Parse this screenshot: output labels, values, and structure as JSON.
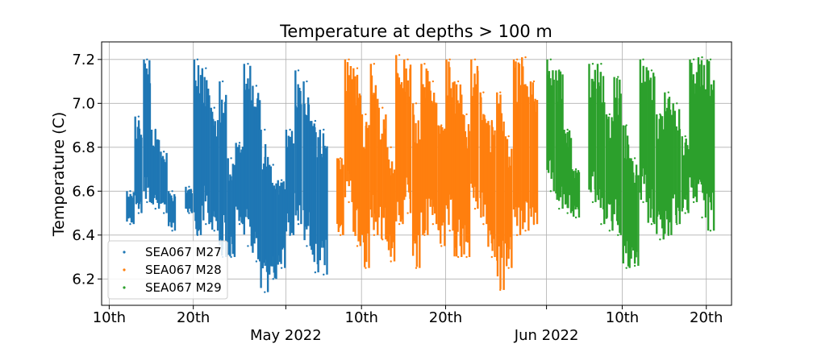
{
  "chart_data": {
    "type": "scatter",
    "title": "Temperature at depths > 100 m",
    "xlabel": "",
    "ylabel": "Temperature (C)",
    "x_range": [
      "2022-04-09",
      "2022-06-23"
    ],
    "ylim": [
      6.08,
      7.28
    ],
    "y_ticks": [
      "6.2",
      "6.4",
      "6.6",
      "6.8",
      "7.0",
      "7.2"
    ],
    "y_tick_values": [
      6.2,
      6.4,
      6.6,
      6.8,
      7.0,
      7.2
    ],
    "x_ticks": [
      {
        "date": "2022-04-10",
        "label": "10th"
      },
      {
        "date": "2022-04-20",
        "label": "20th"
      },
      {
        "date": "2022-05-01",
        "label": "",
        "major_label": "May 2022"
      },
      {
        "date": "2022-05-10",
        "label": "10th"
      },
      {
        "date": "2022-05-20",
        "label": "20th"
      },
      {
        "date": "2022-06-01",
        "label": "",
        "major_label": "Jun 2022"
      },
      {
        "date": "2022-06-10",
        "label": "10th"
      },
      {
        "date": "2022-06-20",
        "label": "20th"
      }
    ],
    "grid": true,
    "legend_position": "lower-left",
    "series": [
      {
        "name": "SEA067 M27",
        "color": "#1f77b4",
        "bursts": [
          {
            "date": "2022-04-12.5",
            "min": 6.45,
            "max": 6.6
          },
          {
            "date": "2022-04-13.5",
            "min": 6.5,
            "max": 6.94
          },
          {
            "date": "2022-04-14.5",
            "min": 6.55,
            "max": 7.2
          },
          {
            "date": "2022-04-15.5",
            "min": 6.52,
            "max": 6.88
          },
          {
            "date": "2022-04-16.5",
            "min": 6.5,
            "max": 6.78
          },
          {
            "date": "2022-04-17.5",
            "min": 6.42,
            "max": 6.6
          },
          {
            "date": "2022-04-19.5",
            "min": 6.5,
            "max": 6.62
          },
          {
            "date": "2022-04-20.5",
            "min": 6.4,
            "max": 7.2
          },
          {
            "date": "2022-04-21.5",
            "min": 6.45,
            "max": 7.16
          },
          {
            "date": "2022-04-22.5",
            "min": 6.42,
            "max": 6.98
          },
          {
            "date": "2022-04-23.5",
            "min": 6.3,
            "max": 7.1
          },
          {
            "date": "2022-04-24.5",
            "min": 6.3,
            "max": 6.75
          },
          {
            "date": "2022-04-25.5",
            "min": 6.45,
            "max": 6.82
          },
          {
            "date": "2022-04-26.5",
            "min": 6.35,
            "max": 7.18
          },
          {
            "date": "2022-04-27.5",
            "min": 6.28,
            "max": 7.08
          },
          {
            "date": "2022-04-28.5",
            "min": 6.14,
            "max": 6.88
          },
          {
            "date": "2022-04-29.5",
            "min": 6.2,
            "max": 6.72
          },
          {
            "date": "2022-04-30.5",
            "min": 6.25,
            "max": 6.65
          },
          {
            "date": "2022-05-01.5",
            "min": 6.4,
            "max": 6.88
          },
          {
            "date": "2022-05-02.5",
            "min": 6.45,
            "max": 7.15
          },
          {
            "date": "2022-05-03.5",
            "min": 6.35,
            "max": 7.1
          },
          {
            "date": "2022-05-04.5",
            "min": 6.23,
            "max": 6.92
          },
          {
            "date": "2022-05-05.5",
            "min": 6.22,
            "max": 6.88
          }
        ]
      },
      {
        "name": "SEA067 M28",
        "color": "#ff7f0e",
        "bursts": [
          {
            "date": "2022-05-07.5",
            "min": 6.4,
            "max": 6.75
          },
          {
            "date": "2022-05-08.5",
            "min": 6.55,
            "max": 7.2
          },
          {
            "date": "2022-05-09.5",
            "min": 6.35,
            "max": 7.16
          },
          {
            "date": "2022-05-10.5",
            "min": 6.25,
            "max": 6.95
          },
          {
            "date": "2022-05-11.5",
            "min": 6.4,
            "max": 7.18
          },
          {
            "date": "2022-05-12.5",
            "min": 6.38,
            "max": 6.98
          },
          {
            "date": "2022-05-13.5",
            "min": 6.28,
            "max": 6.8
          },
          {
            "date": "2022-05-14.5",
            "min": 6.45,
            "max": 7.22
          },
          {
            "date": "2022-05-15.5",
            "min": 6.5,
            "max": 7.2
          },
          {
            "date": "2022-05-16.5",
            "min": 6.25,
            "max": 7.0
          },
          {
            "date": "2022-05-17.5",
            "min": 6.4,
            "max": 7.18
          },
          {
            "date": "2022-05-18.5",
            "min": 6.45,
            "max": 7.1
          },
          {
            "date": "2022-05-19.5",
            "min": 6.35,
            "max": 6.9
          },
          {
            "date": "2022-05-20.5",
            "min": 6.42,
            "max": 7.2
          },
          {
            "date": "2022-05-21.5",
            "min": 6.3,
            "max": 7.1
          },
          {
            "date": "2022-05-22.5",
            "min": 6.3,
            "max": 6.95
          },
          {
            "date": "2022-05-23.5",
            "min": 6.52,
            "max": 7.2
          },
          {
            "date": "2022-05-24.5",
            "min": 6.45,
            "max": 7.05
          },
          {
            "date": "2022-05-25.5",
            "min": 6.3,
            "max": 6.92
          },
          {
            "date": "2022-05-26.5",
            "min": 6.15,
            "max": 7.05
          },
          {
            "date": "2022-05-27.5",
            "min": 6.25,
            "max": 6.85
          },
          {
            "date": "2022-05-28.5",
            "min": 6.4,
            "max": 7.2
          },
          {
            "date": "2022-05-29.5",
            "min": 6.42,
            "max": 7.21
          },
          {
            "date": "2022-05-30.5",
            "min": 6.45,
            "max": 7.1
          }
        ]
      },
      {
        "name": "SEA067 M29",
        "color": "#2ca02c",
        "bursts": [
          {
            "date": "2022-06-01.5",
            "min": 6.6,
            "max": 7.2
          },
          {
            "date": "2022-06-02.5",
            "min": 6.52,
            "max": 7.15
          },
          {
            "date": "2022-06-03.5",
            "min": 6.5,
            "max": 6.88
          },
          {
            "date": "2022-06-04.5",
            "min": 6.48,
            "max": 6.7
          },
          {
            "date": "2022-06-06.5",
            "min": 6.55,
            "max": 7.18
          },
          {
            "date": "2022-06-07.5",
            "min": 6.45,
            "max": 7.18
          },
          {
            "date": "2022-06-08.5",
            "min": 6.42,
            "max": 6.95
          },
          {
            "date": "2022-06-09.5",
            "min": 6.4,
            "max": 7.12
          },
          {
            "date": "2022-06-10.5",
            "min": 6.25,
            "max": 6.9
          },
          {
            "date": "2022-06-11.5",
            "min": 6.26,
            "max": 6.75
          },
          {
            "date": "2022-06-12.5",
            "min": 6.55,
            "max": 7.2
          },
          {
            "date": "2022-06-13.5",
            "min": 6.45,
            "max": 7.15
          },
          {
            "date": "2022-06-14.5",
            "min": 6.38,
            "max": 6.95
          },
          {
            "date": "2022-06-15.5",
            "min": 6.4,
            "max": 7.05
          },
          {
            "date": "2022-06-16.5",
            "min": 6.45,
            "max": 7.0
          },
          {
            "date": "2022-06-17.5",
            "min": 6.5,
            "max": 6.85
          },
          {
            "date": "2022-06-18.5",
            "min": 6.55,
            "max": 7.2
          },
          {
            "date": "2022-06-19.5",
            "min": 6.48,
            "max": 7.21
          },
          {
            "date": "2022-06-20.5",
            "min": 6.42,
            "max": 7.2
          }
        ]
      }
    ]
  }
}
